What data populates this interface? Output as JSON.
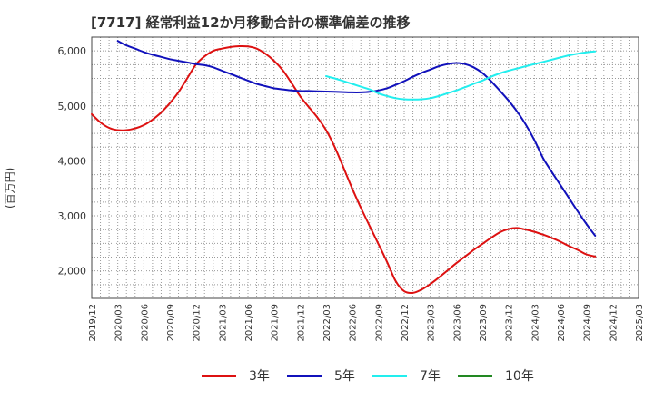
{
  "chart_data": {
    "type": "line",
    "title": "[7717]  経常利益12か月移動合計の標準偏差の推移",
    "ylabel": "(百万円)",
    "xlabel": "",
    "ylim": [
      1500,
      6250
    ],
    "yticks": [
      2000,
      3000,
      4000,
      5000,
      6000
    ],
    "ytick_labels": [
      "2,000",
      "3,000",
      "4,000",
      "5,000",
      "6,000"
    ],
    "xticks": [
      "2019/12",
      "2020/03",
      "2020/06",
      "2020/09",
      "2020/12",
      "2021/03",
      "2021/06",
      "2021/09",
      "2021/12",
      "2022/03",
      "2022/06",
      "2022/09",
      "2022/12",
      "2023/03",
      "2023/06",
      "2023/09",
      "2023/12",
      "2024/03",
      "2024/06",
      "2024/09",
      "2024/12",
      "2025/03"
    ],
    "grid": true,
    "legend_position": "bottom",
    "series": [
      {
        "name": "3年",
        "color": "#dd1111",
        "points": [
          [
            "2019/12",
            4850
          ],
          [
            "2020/01",
            4700
          ],
          [
            "2020/02",
            4600
          ],
          [
            "2020/03",
            4560
          ],
          [
            "2020/04",
            4560
          ],
          [
            "2020/05",
            4590
          ],
          [
            "2020/06",
            4650
          ],
          [
            "2020/07",
            4750
          ],
          [
            "2020/08",
            4880
          ],
          [
            "2020/09",
            5050
          ],
          [
            "2020/10",
            5250
          ],
          [
            "2020/11",
            5500
          ],
          [
            "2020/12",
            5750
          ],
          [
            "2021/01",
            5900
          ],
          [
            "2021/02",
            6000
          ],
          [
            "2021/03",
            6040
          ],
          [
            "2021/04",
            6070
          ],
          [
            "2021/05",
            6085
          ],
          [
            "2021/06",
            6080
          ],
          [
            "2021/07",
            6040
          ],
          [
            "2021/08",
            5950
          ],
          [
            "2021/09",
            5820
          ],
          [
            "2021/10",
            5650
          ],
          [
            "2021/11",
            5420
          ],
          [
            "2021/12",
            5180
          ],
          [
            "2022/01",
            4980
          ],
          [
            "2022/02",
            4790
          ],
          [
            "2022/03",
            4560
          ],
          [
            "2022/04",
            4250
          ],
          [
            "2022/05",
            3880
          ],
          [
            "2022/06",
            3500
          ],
          [
            "2022/07",
            3150
          ],
          [
            "2022/08",
            2820
          ],
          [
            "2022/09",
            2500
          ],
          [
            "2022/10",
            2170
          ],
          [
            "2022/11",
            1820
          ],
          [
            "2022/12",
            1630
          ],
          [
            "2023/01",
            1600
          ],
          [
            "2023/02",
            1660
          ],
          [
            "2023/03",
            1760
          ],
          [
            "2023/04",
            1880
          ],
          [
            "2023/05",
            2010
          ],
          [
            "2023/06",
            2140
          ],
          [
            "2023/07",
            2260
          ],
          [
            "2023/08",
            2380
          ],
          [
            "2023/09",
            2490
          ],
          [
            "2023/10",
            2600
          ],
          [
            "2023/11",
            2700
          ],
          [
            "2023/12",
            2760
          ],
          [
            "2024/01",
            2780
          ],
          [
            "2024/02",
            2750
          ],
          [
            "2024/03",
            2710
          ],
          [
            "2024/04",
            2660
          ],
          [
            "2024/05",
            2600
          ],
          [
            "2024/06",
            2530
          ],
          [
            "2024/07",
            2450
          ],
          [
            "2024/08",
            2380
          ],
          [
            "2024/09",
            2300
          ],
          [
            "2024/10",
            2260
          ]
        ]
      },
      {
        "name": "5年",
        "color": "#1111bb",
        "points": [
          [
            "2020/03",
            6180
          ],
          [
            "2020/04",
            6100
          ],
          [
            "2020/05",
            6040
          ],
          [
            "2020/06",
            5980
          ],
          [
            "2020/07",
            5930
          ],
          [
            "2020/08",
            5890
          ],
          [
            "2020/09",
            5850
          ],
          [
            "2020/10",
            5820
          ],
          [
            "2020/11",
            5790
          ],
          [
            "2020/12",
            5760
          ],
          [
            "2021/01",
            5740
          ],
          [
            "2021/02",
            5700
          ],
          [
            "2021/03",
            5640
          ],
          [
            "2021/04",
            5580
          ],
          [
            "2021/05",
            5520
          ],
          [
            "2021/06",
            5460
          ],
          [
            "2021/07",
            5400
          ],
          [
            "2021/08",
            5360
          ],
          [
            "2021/09",
            5320
          ],
          [
            "2021/10",
            5300
          ],
          [
            "2021/11",
            5280
          ],
          [
            "2021/12",
            5270
          ],
          [
            "2022/01",
            5270
          ],
          [
            "2022/02",
            5265
          ],
          [
            "2022/03",
            5260
          ],
          [
            "2022/04",
            5255
          ],
          [
            "2022/05",
            5250
          ],
          [
            "2022/06",
            5245
          ],
          [
            "2022/07",
            5245
          ],
          [
            "2022/08",
            5255
          ],
          [
            "2022/09",
            5280
          ],
          [
            "2022/10",
            5320
          ],
          [
            "2022/11",
            5380
          ],
          [
            "2022/12",
            5450
          ],
          [
            "2023/01",
            5530
          ],
          [
            "2023/02",
            5600
          ],
          [
            "2023/03",
            5660
          ],
          [
            "2023/04",
            5720
          ],
          [
            "2023/05",
            5760
          ],
          [
            "2023/06",
            5780
          ],
          [
            "2023/07",
            5760
          ],
          [
            "2023/08",
            5700
          ],
          [
            "2023/09",
            5600
          ],
          [
            "2023/10",
            5450
          ],
          [
            "2023/11",
            5280
          ],
          [
            "2023/12",
            5100
          ],
          [
            "2024/01",
            4900
          ],
          [
            "2024/02",
            4660
          ],
          [
            "2024/03",
            4380
          ],
          [
            "2024/04",
            4050
          ],
          [
            "2024/05",
            3800
          ],
          [
            "2024/06",
            3560
          ],
          [
            "2024/07",
            3320
          ],
          [
            "2024/08",
            3080
          ],
          [
            "2024/09",
            2850
          ],
          [
            "2024/10",
            2640
          ]
        ]
      },
      {
        "name": "7年",
        "color": "#22eeee",
        "points": [
          [
            "2022/03",
            5540
          ],
          [
            "2022/04",
            5500
          ],
          [
            "2022/05",
            5450
          ],
          [
            "2022/06",
            5400
          ],
          [
            "2022/07",
            5350
          ],
          [
            "2022/08",
            5300
          ],
          [
            "2022/09",
            5230
          ],
          [
            "2022/10",
            5180
          ],
          [
            "2022/11",
            5140
          ],
          [
            "2022/12",
            5120
          ],
          [
            "2023/01",
            5115
          ],
          [
            "2023/02",
            5120
          ],
          [
            "2023/03",
            5140
          ],
          [
            "2023/04",
            5180
          ],
          [
            "2023/05",
            5230
          ],
          [
            "2023/06",
            5280
          ],
          [
            "2023/07",
            5340
          ],
          [
            "2023/08",
            5400
          ],
          [
            "2023/09",
            5460
          ],
          [
            "2023/10",
            5530
          ],
          [
            "2023/11",
            5590
          ],
          [
            "2023/12",
            5640
          ],
          [
            "2024/01",
            5680
          ],
          [
            "2024/02",
            5720
          ],
          [
            "2024/03",
            5760
          ],
          [
            "2024/04",
            5800
          ],
          [
            "2024/05",
            5840
          ],
          [
            "2024/06",
            5880
          ],
          [
            "2024/07",
            5920
          ],
          [
            "2024/08",
            5950
          ],
          [
            "2024/09",
            5975
          ],
          [
            "2024/10",
            5990
          ]
        ]
      },
      {
        "name": "10年",
        "color": "#228822",
        "points": []
      }
    ]
  }
}
